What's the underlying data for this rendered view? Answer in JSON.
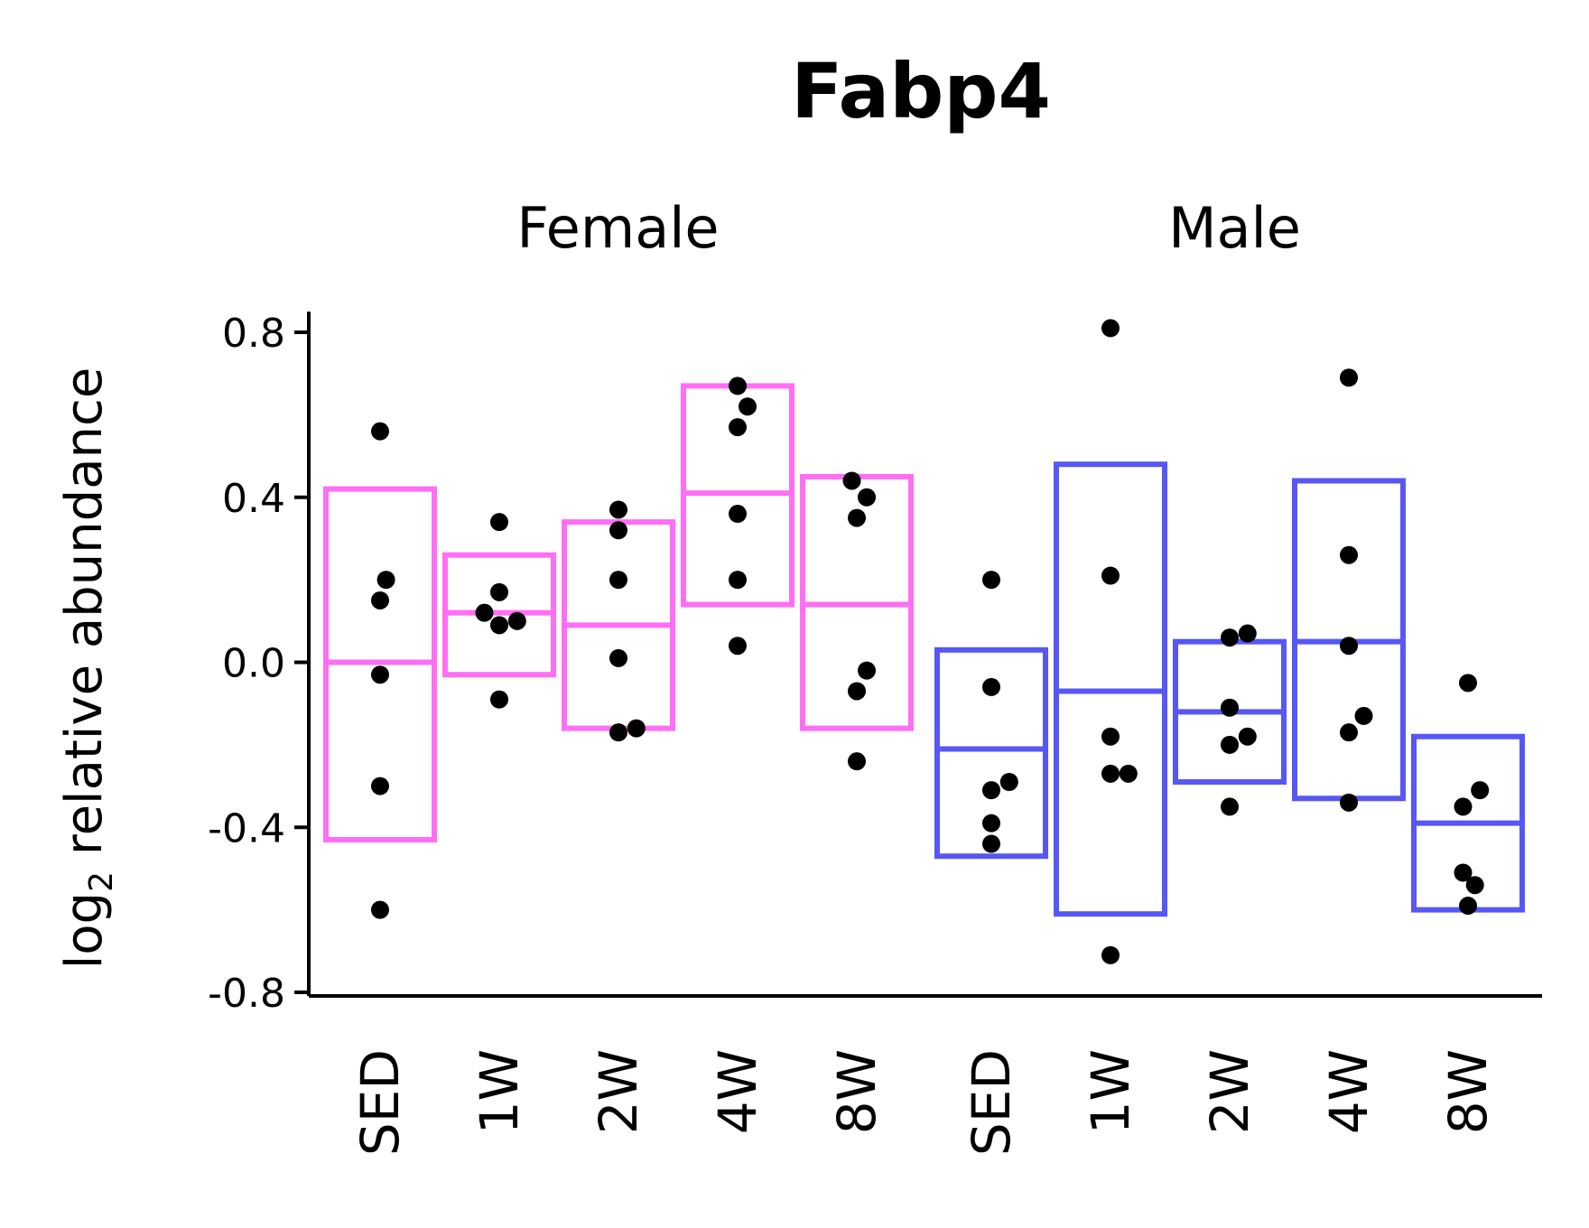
{
  "chart_data": {
    "type": "box-with-points",
    "title": "Fabp4",
    "ylabel_main": "log",
    "ylabel_sub": "2",
    "ylabel_rest": " relative abundance",
    "ylim": [
      -0.8,
      0.85
    ],
    "yticks": [
      {
        "value": 0.8,
        "label": "0.8"
      },
      {
        "value": 0.4,
        "label": "0.4"
      },
      {
        "value": 0.0,
        "label": "0.0"
      },
      {
        "value": -0.4,
        "label": "-0.4"
      },
      {
        "value": -0.8,
        "label": "-0.8"
      }
    ],
    "categories": [
      "SED",
      "1W",
      "2W",
      "4W",
      "8W"
    ],
    "colors": {
      "Female": "#ff6ef5",
      "Male": "#5757f5"
    },
    "facets": [
      {
        "name": "Female",
        "groups": [
          {
            "category": "SED",
            "q1": -0.43,
            "median": 0.0,
            "q3": 0.42,
            "points": [
              [
                0,
                0.56
              ],
              [
                0.06,
                0.2
              ],
              [
                0,
                0.15
              ],
              [
                0,
                -0.03
              ],
              [
                0,
                -0.3
              ],
              [
                0,
                -0.6
              ]
            ]
          },
          {
            "category": "1W",
            "q1": -0.03,
            "median": 0.12,
            "q3": 0.26,
            "points": [
              [
                0,
                0.34
              ],
              [
                -0.15,
                0.12
              ],
              [
                0,
                0.17
              ],
              [
                0,
                0.09
              ],
              [
                0.18,
                0.1
              ],
              [
                0,
                -0.09
              ]
            ]
          },
          {
            "category": "2W",
            "q1": -0.16,
            "median": 0.09,
            "q3": 0.34,
            "points": [
              [
                0,
                0.37
              ],
              [
                0,
                0.32
              ],
              [
                0,
                0.2
              ],
              [
                0,
                0.01
              ],
              [
                0,
                -0.17
              ],
              [
                0.18,
                -0.16
              ]
            ]
          },
          {
            "category": "4W",
            "q1": 0.14,
            "median": 0.41,
            "q3": 0.67,
            "points": [
              [
                0,
                0.67
              ],
              [
                0.1,
                0.62
              ],
              [
                0,
                0.57
              ],
              [
                0,
                0.36
              ],
              [
                0,
                0.2
              ],
              [
                0,
                0.04
              ]
            ]
          },
          {
            "category": "8W",
            "q1": -0.16,
            "median": 0.14,
            "q3": 0.45,
            "points": [
              [
                -0.05,
                0.44
              ],
              [
                0.1,
                0.4
              ],
              [
                0,
                0.35
              ],
              [
                0.1,
                -0.02
              ],
              [
                0,
                -0.07
              ],
              [
                0,
                -0.24
              ]
            ]
          }
        ]
      },
      {
        "name": "Male",
        "groups": [
          {
            "category": "SED",
            "q1": -0.47,
            "median": -0.21,
            "q3": 0.03,
            "points": [
              [
                0,
                0.2
              ],
              [
                0,
                -0.06
              ],
              [
                0.18,
                -0.29
              ],
              [
                0,
                -0.31
              ],
              [
                0,
                -0.39
              ],
              [
                0,
                -0.44
              ]
            ]
          },
          {
            "category": "1W",
            "q1": -0.61,
            "median": -0.07,
            "q3": 0.48,
            "points": [
              [
                0,
                0.81
              ],
              [
                0,
                0.21
              ],
              [
                0,
                -0.18
              ],
              [
                0,
                -0.27
              ],
              [
                0.18,
                -0.27
              ],
              [
                0,
                -0.71
              ]
            ]
          },
          {
            "category": "2W",
            "q1": -0.29,
            "median": -0.12,
            "q3": 0.05,
            "points": [
              [
                0,
                0.06
              ],
              [
                0.18,
                0.07
              ],
              [
                0,
                -0.11
              ],
              [
                0.18,
                -0.18
              ],
              [
                0,
                -0.2
              ],
              [
                0,
                -0.35
              ]
            ]
          },
          {
            "category": "4W",
            "q1": -0.33,
            "median": 0.05,
            "q3": 0.44,
            "points": [
              [
                0,
                0.69
              ],
              [
                0,
                0.26
              ],
              [
                0,
                0.04
              ],
              [
                0,
                -0.17
              ],
              [
                0.15,
                -0.13
              ],
              [
                0,
                -0.34
              ]
            ]
          },
          {
            "category": "8W",
            "q1": -0.6,
            "median": -0.39,
            "q3": -0.18,
            "points": [
              [
                0,
                -0.05
              ],
              [
                0.12,
                -0.31
              ],
              [
                -0.05,
                -0.35
              ],
              [
                -0.05,
                -0.51
              ],
              [
                0.07,
                -0.54
              ],
              [
                0,
                -0.59
              ]
            ]
          }
        ]
      }
    ],
    "grid": false,
    "legend": "none"
  }
}
